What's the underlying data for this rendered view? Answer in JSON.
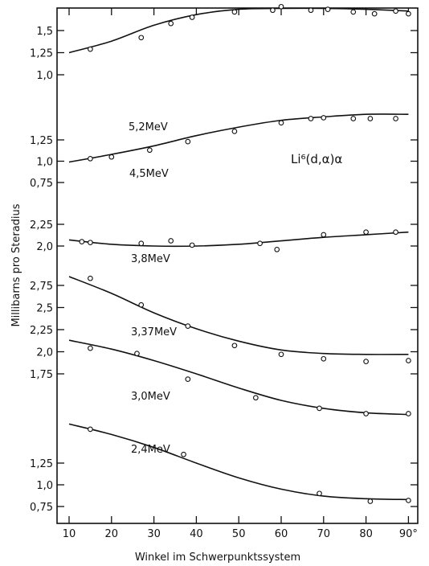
{
  "chart_data": {
    "type": "line",
    "xlabel": "Winkel im Schwerpunktssystem",
    "ylabel": "Millibarns pro Steradius",
    "annotation": "Li⁶(d,α)α",
    "xlim": [
      8,
      92
    ],
    "x_ticks": [
      "10",
      "20",
      "30",
      "40",
      "50",
      "60",
      "70",
      "80",
      "90°"
    ],
    "x_tick_values": [
      10,
      20,
      30,
      40,
      50,
      60,
      70,
      80,
      90
    ],
    "y_ticks": [
      {
        "label": "1,5",
        "panel": "5.2"
      },
      {
        "label": "1,25",
        "panel": "5.2"
      },
      {
        "label": "1,0",
        "panel": "5.2"
      },
      {
        "label": "1,25",
        "panel": "4.5"
      },
      {
        "label": "1,0",
        "panel": "4.5"
      },
      {
        "label": "0,75",
        "panel": "4.5"
      },
      {
        "label": "2,25",
        "panel": "3.8"
      },
      {
        "label": "2,0",
        "panel": "3.8"
      },
      {
        "label": "2,75",
        "panel": "3.37"
      },
      {
        "label": "2,5",
        "panel": "3.37"
      },
      {
        "label": "2,25",
        "panel": "3.37"
      },
      {
        "label": "2,0",
        "panel": "3.37"
      },
      {
        "label": "1,75",
        "panel": "3.37"
      },
      {
        "label": "1,25",
        "panel": "2.4"
      },
      {
        "label": "1,0",
        "panel": "2.4"
      },
      {
        "label": "0,75",
        "panel": "2.4"
      }
    ],
    "grid": false,
    "series": [
      {
        "name": "5,2MeV",
        "curve": [
          [
            10,
            1.25
          ],
          [
            20,
            1.38
          ],
          [
            30,
            1.56
          ],
          [
            40,
            1.68
          ],
          [
            50,
            1.74
          ],
          [
            60,
            1.75
          ],
          [
            70,
            1.75
          ],
          [
            80,
            1.74
          ],
          [
            90,
            1.72
          ]
        ],
        "points": [
          [
            15,
            1.29
          ],
          [
            27,
            1.42
          ],
          [
            34,
            1.58
          ],
          [
            39,
            1.65
          ],
          [
            49,
            1.71
          ],
          [
            58,
            1.73
          ],
          [
            60,
            1.77
          ],
          [
            67,
            1.73
          ],
          [
            71,
            1.74
          ],
          [
            77,
            1.71
          ],
          [
            82,
            1.69
          ],
          [
            87,
            1.72
          ],
          [
            90,
            1.69
          ]
        ]
      },
      {
        "name": "4,5MeV",
        "curve": [
          [
            10,
            0.99
          ],
          [
            20,
            1.08
          ],
          [
            30,
            1.18
          ],
          [
            40,
            1.3
          ],
          [
            50,
            1.4
          ],
          [
            60,
            1.48
          ],
          [
            70,
            1.52
          ],
          [
            80,
            1.55
          ],
          [
            90,
            1.55
          ]
        ],
        "points": [
          [
            15,
            1.03
          ],
          [
            20,
            1.05
          ],
          [
            29,
            1.13
          ],
          [
            38,
            1.23
          ],
          [
            49,
            1.35
          ],
          [
            60,
            1.45
          ],
          [
            67,
            1.5
          ],
          [
            70,
            1.51
          ],
          [
            77,
            1.5
          ],
          [
            81,
            1.5
          ],
          [
            87,
            1.5
          ]
        ]
      },
      {
        "name": "3,8MeV",
        "curve": [
          [
            10,
            2.07
          ],
          [
            20,
            2.02
          ],
          [
            30,
            2.0
          ],
          [
            40,
            2.0
          ],
          [
            50,
            2.02
          ],
          [
            60,
            2.06
          ],
          [
            70,
            2.1
          ],
          [
            80,
            2.13
          ],
          [
            90,
            2.16
          ]
        ],
        "points": [
          [
            13,
            2.05
          ],
          [
            15,
            2.04
          ],
          [
            27,
            2.03
          ],
          [
            34,
            2.06
          ],
          [
            39,
            2.01
          ],
          [
            55,
            2.03
          ],
          [
            59,
            1.96
          ],
          [
            70,
            2.13
          ],
          [
            80,
            2.16
          ],
          [
            87,
            2.16
          ]
        ]
      },
      {
        "name": "3,37MeV",
        "curve": [
          [
            10,
            2.85
          ],
          [
            20,
            2.66
          ],
          [
            30,
            2.44
          ],
          [
            40,
            2.26
          ],
          [
            50,
            2.12
          ],
          [
            60,
            2.02
          ],
          [
            70,
            1.98
          ],
          [
            80,
            1.97
          ],
          [
            90,
            1.97
          ]
        ],
        "points": [
          [
            15,
            2.83
          ],
          [
            27,
            2.53
          ],
          [
            38,
            2.29
          ],
          [
            49,
            2.07
          ],
          [
            60,
            1.97
          ],
          [
            70,
            1.92
          ],
          [
            80,
            1.89
          ],
          [
            90,
            1.9
          ]
        ]
      },
      {
        "name": "3,0MeV",
        "curve": [
          [
            10,
            2.13
          ],
          [
            20,
            2.03
          ],
          [
            30,
            1.9
          ],
          [
            40,
            1.75
          ],
          [
            50,
            1.59
          ],
          [
            60,
            1.45
          ],
          [
            70,
            1.36
          ],
          [
            80,
            1.31
          ],
          [
            90,
            1.29
          ]
        ],
        "points": [
          [
            15,
            2.04
          ],
          [
            26,
            1.98
          ],
          [
            38,
            1.69
          ],
          [
            54,
            1.48
          ],
          [
            69,
            1.36
          ],
          [
            80,
            1.3
          ],
          [
            90,
            1.3
          ]
        ]
      },
      {
        "name": "2,4MeV",
        "curve": [
          [
            10,
            1.7
          ],
          [
            20,
            1.58
          ],
          [
            30,
            1.43
          ],
          [
            40,
            1.25
          ],
          [
            50,
            1.08
          ],
          [
            60,
            0.95
          ],
          [
            70,
            0.87
          ],
          [
            80,
            0.84
          ],
          [
            90,
            0.83
          ]
        ],
        "points": [
          [
            15,
            1.64
          ],
          [
            37,
            1.35
          ],
          [
            69,
            0.9
          ],
          [
            81,
            0.81
          ],
          [
            90,
            0.82
          ]
        ]
      }
    ]
  }
}
